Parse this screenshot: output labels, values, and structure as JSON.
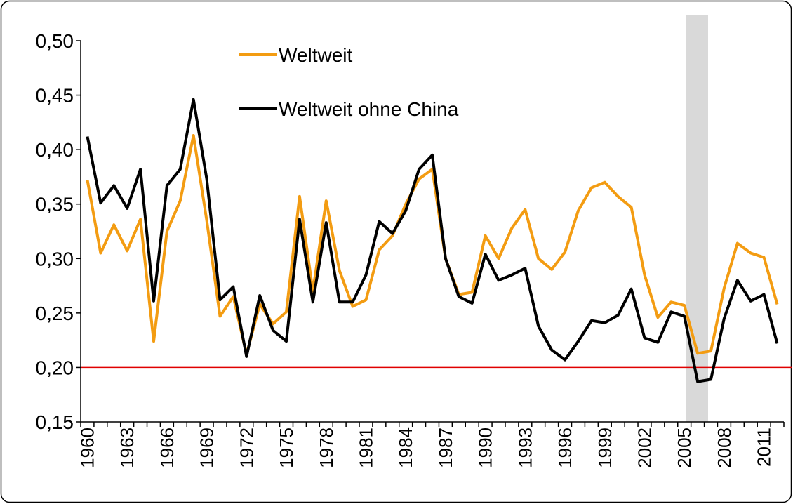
{
  "chart_data": {
    "type": "line",
    "categories": [
      "1960",
      null,
      null,
      "1963",
      null,
      null,
      "1966",
      null,
      null,
      "1969",
      null,
      null,
      "1972",
      null,
      null,
      "1975",
      null,
      null,
      "1978",
      null,
      null,
      "1981",
      null,
      null,
      "1984",
      null,
      null,
      "1987",
      null,
      null,
      "1990",
      null,
      null,
      "1993",
      null,
      null,
      "1996",
      null,
      null,
      "1999",
      null,
      null,
      "2002",
      null,
      null,
      "2005",
      null,
      null,
      "2008",
      null,
      null,
      "2011",
      null
    ],
    "series": [
      {
        "name": "Weltweit",
        "color": "#f39c12",
        "values": [
          0.372,
          0.305,
          0.331,
          0.307,
          0.336,
          0.224,
          0.325,
          0.353,
          0.413,
          0.335,
          0.247,
          0.265,
          0.212,
          0.258,
          0.24,
          0.251,
          0.357,
          0.27,
          0.353,
          0.289,
          0.256,
          0.262,
          0.308,
          0.321,
          0.35,
          0.373,
          0.382,
          0.3,
          0.267,
          0.269,
          0.321,
          0.3,
          0.328,
          0.345,
          0.3,
          0.29,
          0.306,
          0.344,
          0.365,
          0.37,
          0.357,
          0.347,
          0.285,
          0.246,
          0.26,
          0.257,
          0.213,
          0.215,
          0.273,
          0.314,
          0.305,
          0.301,
          0.258
        ]
      },
      {
        "name": "Weltweit ohne China",
        "color": "#000000",
        "values": [
          0.412,
          0.351,
          0.367,
          0.346,
          0.382,
          0.261,
          0.367,
          0.382,
          0.446,
          0.373,
          0.262,
          0.274,
          0.21,
          0.266,
          0.234,
          0.224,
          0.336,
          0.26,
          0.333,
          0.26,
          0.26,
          0.285,
          0.334,
          0.323,
          0.344,
          0.382,
          0.395,
          0.3,
          0.265,
          0.259,
          0.304,
          0.28,
          0.285,
          0.291,
          0.238,
          0.216,
          0.207,
          0.224,
          0.243,
          0.241,
          0.248,
          0.272,
          0.227,
          0.223,
          0.251,
          0.247,
          0.187,
          0.189,
          0.245,
          0.28,
          0.261,
          0.267,
          0.222
        ]
      }
    ],
    "ylim": [
      0.15,
      0.5
    ],
    "yticks": [
      {
        "value": 0.15,
        "label": "0,15"
      },
      {
        "value": 0.2,
        "label": "0,20"
      },
      {
        "value": 0.25,
        "label": "0,25"
      },
      {
        "value": 0.3,
        "label": "0,30"
      },
      {
        "value": 0.35,
        "label": "0,35"
      },
      {
        "value": 0.4,
        "label": "0,40"
      },
      {
        "value": 0.45,
        "label": "0,45"
      },
      {
        "value": 0.5,
        "label": "0,50"
      }
    ],
    "reference_line": {
      "value": 0.2,
      "color": "#e00000"
    },
    "grid": false
  }
}
